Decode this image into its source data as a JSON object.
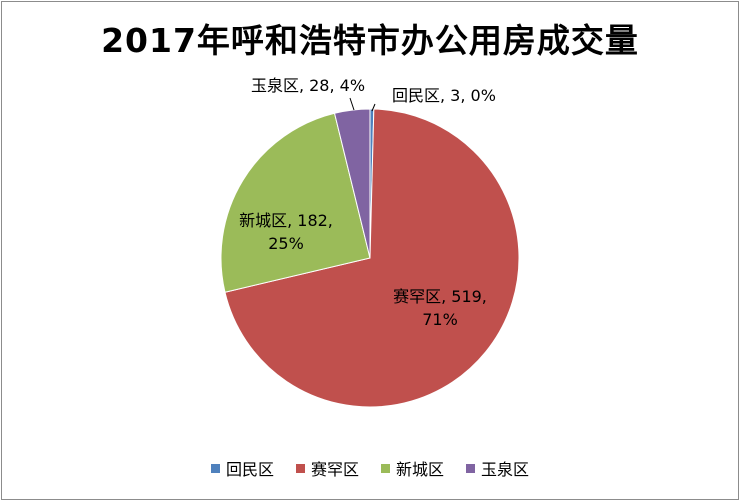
{
  "chart_data": {
    "type": "pie",
    "title": "2017年呼和浩特市办公用房成交量",
    "slices": [
      {
        "name": "回民区",
        "value": 3,
        "percent": "0%",
        "color": "#4f81bd",
        "label_lines": [
          "回民区, 3, 0%"
        ]
      },
      {
        "name": "赛罕区",
        "value": 519,
        "percent": "71%",
        "color": "#c0504d",
        "label_lines": [
          "赛罕区, 519,",
          "71%"
        ]
      },
      {
        "name": "新城区",
        "value": 182,
        "percent": "25%",
        "color": "#9bbb59",
        "label_lines": [
          "新城区, 182,",
          "25%"
        ]
      },
      {
        "name": "玉泉区",
        "value": 28,
        "percent": "4%",
        "color": "#8064a2",
        "label_lines": [
          "玉泉区, 28, 4%"
        ]
      }
    ],
    "start_angle": "12 o'clock, clockwise",
    "legend_position": "bottom",
    "legend": [
      "回民区",
      "赛罕区",
      "新城区",
      "玉泉区"
    ]
  }
}
